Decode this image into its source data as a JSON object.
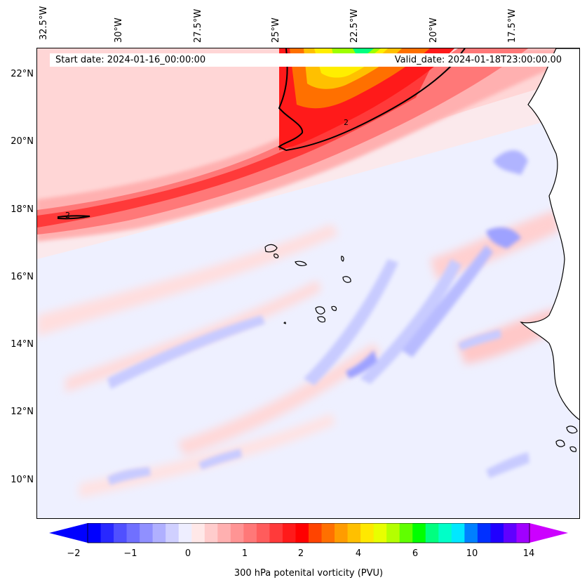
{
  "header": {
    "start_date": "Start date: 2024-01-16_00:00:00",
    "valid_date": "Valid_date: 2024-01-18T23:00:00.00"
  },
  "map": {
    "longitude_labels": [
      "32.5°W",
      "30°W",
      "27.5°W",
      "25°W",
      "22.5°W",
      "20°W",
      "17.5°W"
    ],
    "latitude_labels": [
      "22°N",
      "20°N",
      "18°N",
      "16°N",
      "14°N",
      "12°N",
      "10°N"
    ],
    "contour_label": "2",
    "colors": {
      "high_pv_core": "#ff0000",
      "pv_2": "#ff2a2a",
      "pv_1": "#ff8080",
      "pv_low_positive": "#ffd9d9",
      "pv_slightly_negative": "#eef0ff",
      "pv_negative": "#c8cbff",
      "pv_most_negative": "#8c8cff",
      "jet_yellow": "#ffee00",
      "jet_green": "#9dff00",
      "coastline": "#000000",
      "land": "#ffffff"
    }
  },
  "colorbar": {
    "label": "300 hPa potenital vorticity (PVU)",
    "ticks": [
      "−2",
      "−1",
      "0",
      "1",
      "2",
      "4",
      "6",
      "10",
      "14"
    ],
    "colors": [
      "#0000ff",
      "#2828ff",
      "#5050ff",
      "#7070ff",
      "#9090ff",
      "#b0b0ff",
      "#d0d0ff",
      "#eeeeff",
      "#ffe8e8",
      "#ffcccc",
      "#ffb0b0",
      "#ff9494",
      "#ff7878",
      "#ff5c5c",
      "#ff3a3a",
      "#ff1a1a",
      "#ff0000",
      "#ff4400",
      "#ff7000",
      "#ff9c00",
      "#ffc000",
      "#ffe800",
      "#e8ff00",
      "#b4ff00",
      "#60ff00",
      "#00ff00",
      "#00ff80",
      "#00ffc8",
      "#00e8ff",
      "#0080ff",
      "#0030ff",
      "#2000ff",
      "#6000ff",
      "#a000ff"
    ],
    "extend_min_color": "#0000ff",
    "extend_max_color": "#cc00ff"
  }
}
